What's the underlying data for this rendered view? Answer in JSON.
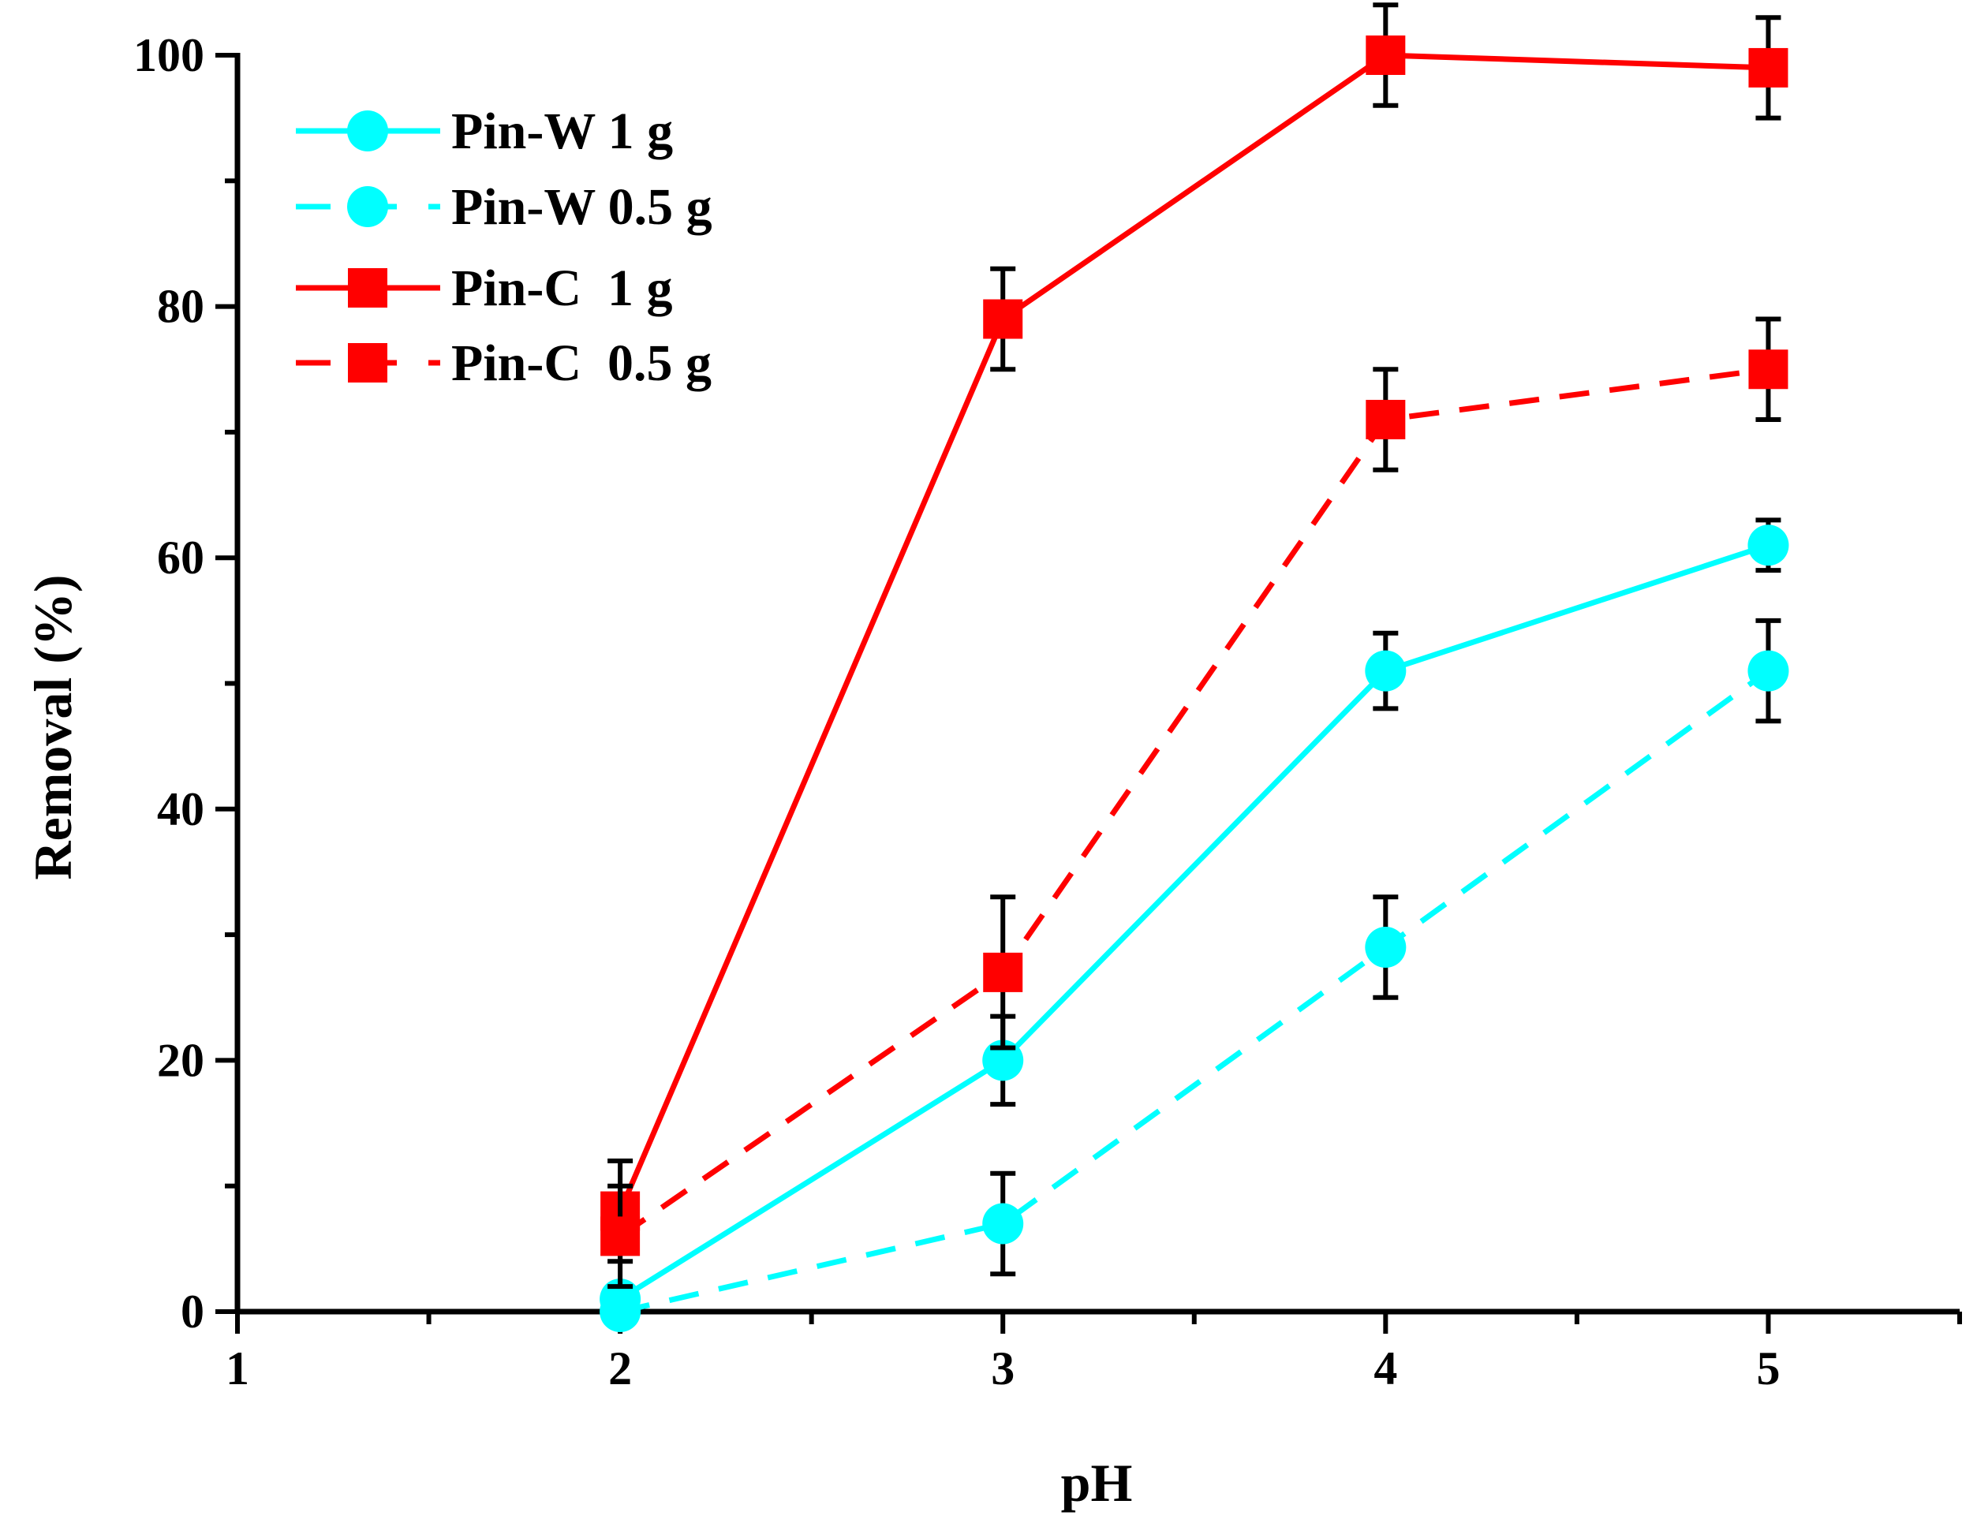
{
  "chart_data": {
    "type": "line",
    "title": "",
    "xlabel": "pH",
    "ylabel": "Removal (%)",
    "xlim": [
      1,
      5.5
    ],
    "ylim": [
      0,
      100
    ],
    "xticks": [
      1,
      2,
      3,
      4,
      5
    ],
    "xtick_labels": [
      "1",
      "2",
      "3",
      "4",
      "5"
    ],
    "yticks": [
      0,
      20,
      40,
      60,
      80,
      100
    ],
    "ytick_labels": [
      "0",
      "20",
      "40",
      "60",
      "80",
      "100"
    ],
    "grid": false,
    "legend_position": "top-left",
    "series": [
      {
        "name": "Pin-W 1 g",
        "color": "#00ffff",
        "line_style": "solid",
        "marker": "circle",
        "x": [
          2,
          3,
          4,
          5
        ],
        "y": [
          1,
          20,
          51,
          61
        ],
        "error": [
          1,
          3.5,
          3,
          2
        ]
      },
      {
        "name": "Pin-W 0.5 g",
        "color": "#00ffff",
        "line_style": "dashed",
        "marker": "circle",
        "x": [
          2,
          3,
          4,
          5
        ],
        "y": [
          0,
          7,
          29,
          51
        ],
        "error": [
          0,
          4,
          4,
          4
        ]
      },
      {
        "name": "Pin-C  1 g",
        "color": "#ff0000",
        "line_style": "solid",
        "marker": "square",
        "x": [
          2,
          3,
          4,
          5
        ],
        "y": [
          8,
          79,
          100,
          99
        ],
        "error": [
          4,
          4,
          4,
          4
        ]
      },
      {
        "name": "Pin-C  0.5 g",
        "color": "#ff0000",
        "line_style": "dashed",
        "marker": "square",
        "x": [
          2,
          3,
          4,
          5
        ],
        "y": [
          6,
          27,
          71,
          75
        ],
        "error": [
          4,
          6,
          4,
          4
        ]
      }
    ]
  }
}
